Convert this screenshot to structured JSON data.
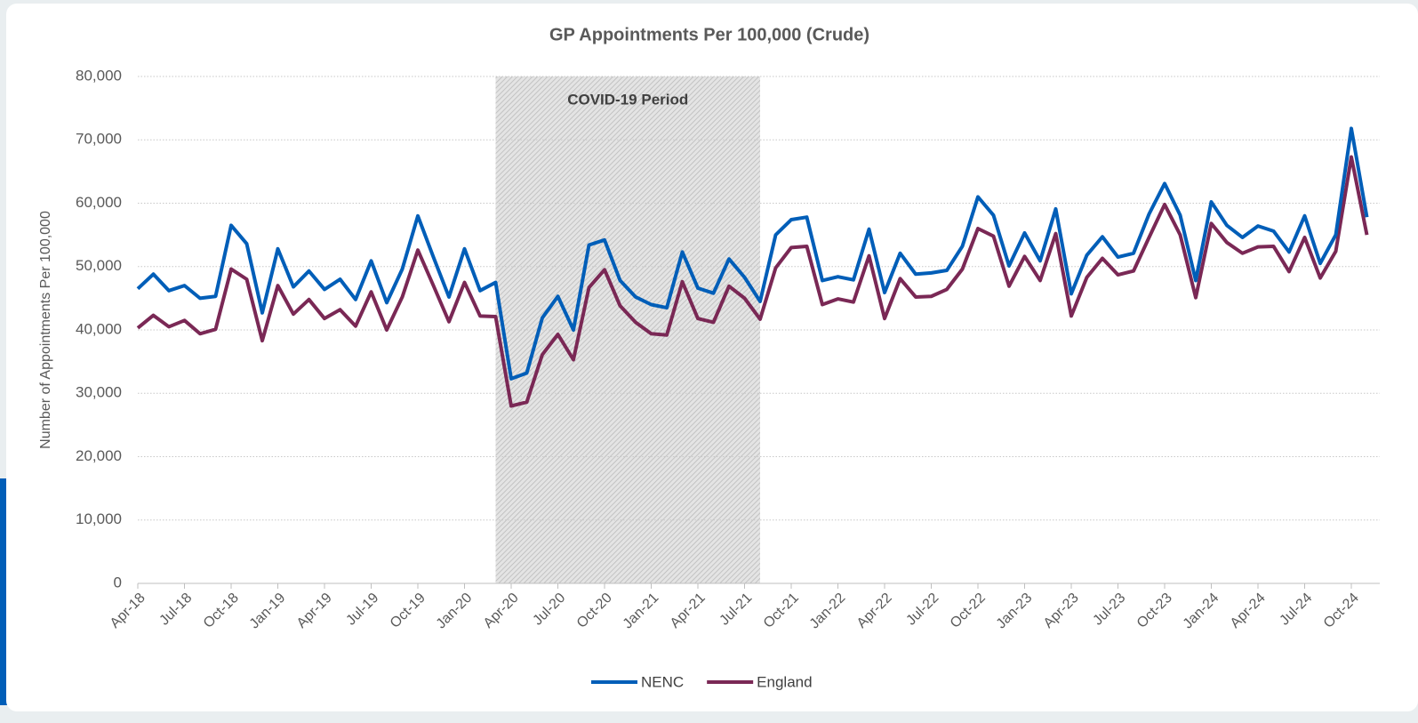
{
  "chart_data": {
    "type": "line",
    "title": "GP Appointments Per 100,000 (Crude)",
    "y_label": "Number of Appointments Per 100,000",
    "categories": [
      "Apr-18",
      null,
      null,
      "Jul-18",
      null,
      null,
      "Oct-18",
      null,
      null,
      "Jan-19",
      null,
      null,
      "Apr-19",
      null,
      null,
      "Jul-19",
      null,
      null,
      "Oct-19",
      null,
      null,
      "Jan-20",
      null,
      null,
      "Apr-20",
      null,
      null,
      "Jul-20",
      null,
      null,
      "Oct-20",
      null,
      null,
      "Jan-21",
      null,
      null,
      "Apr-21",
      null,
      null,
      "Jul-21",
      null,
      null,
      "Oct-21",
      null,
      null,
      "Jan-22",
      null,
      null,
      "Apr-22",
      null,
      null,
      "Jul-22",
      null,
      null,
      "Oct-22",
      null,
      null,
      "Jan-23",
      null,
      null,
      "Apr-23",
      null,
      null,
      "Jul-23",
      null,
      null,
      "Oct-23",
      null,
      null,
      "Jan-24",
      null,
      null,
      "Apr-24",
      null,
      null,
      "Jul-24",
      null,
      null,
      "Oct-24",
      null
    ],
    "series": [
      {
        "name": "NENC",
        "color": "#005eb8",
        "values": [
          46500,
          48800,
          46200,
          47000,
          45000,
          45300,
          56500,
          53600,
          42700,
          52800,
          46800,
          49300,
          46400,
          48000,
          44800,
          50900,
          44300,
          49600,
          58000,
          51500,
          45200,
          52800,
          46200,
          47500,
          32300,
          33200,
          41900,
          45300,
          40000,
          53400,
          54200,
          47800,
          45200,
          44000,
          43500,
          52300,
          46600,
          45800,
          51200,
          48300,
          44500,
          55000,
          57400,
          57800,
          47800,
          48400,
          47900,
          55900,
          45900,
          52100,
          48800,
          49000,
          49400,
          53200,
          61000,
          58100,
          50100,
          55300,
          50900,
          59100,
          45700,
          51800,
          54700,
          51500,
          52100,
          58300,
          63100,
          58100,
          47800,
          60200,
          56500,
          54600,
          56400,
          55600,
          52300,
          58000,
          50500,
          55000,
          71800,
          57800
        ]
      },
      {
        "name": "England",
        "color": "#7a2855",
        "values": [
          40300,
          42300,
          40500,
          41500,
          39400,
          40100,
          49600,
          48000,
          38300,
          47000,
          42500,
          44800,
          41800,
          43200,
          40600,
          46000,
          40000,
          45200,
          52600,
          47000,
          41300,
          47500,
          42200,
          42100,
          28000,
          28600,
          36100,
          39300,
          35300,
          46700,
          49500,
          43800,
          41200,
          39400,
          39200,
          47600,
          41800,
          41200,
          46900,
          45000,
          41700,
          49800,
          53000,
          53200,
          44000,
          44900,
          44400,
          51700,
          41800,
          48100,
          45200,
          45300,
          46400,
          49600,
          56000,
          54800,
          46900,
          51600,
          47800,
          55200,
          42200,
          48300,
          51300,
          48700,
          49300,
          54600,
          59800,
          55000,
          45100,
          56800,
          53800,
          52100,
          53100,
          53200,
          49200,
          54600,
          48200,
          52400,
          67300,
          55000
        ]
      }
    ],
    "shaded_region": {
      "text": "COVID-19 Period",
      "start": 23,
      "end": 40
    },
    "ylim": [
      0,
      80000
    ],
    "yticks": [
      0,
      {
        "value": 10000,
        "label": "10,000"
      },
      {
        "value": 20000,
        "label": "20,000"
      },
      {
        "value": 30000,
        "label": "30,000"
      },
      {
        "value": 40000,
        "label": "40,000"
      },
      {
        "value": 50000,
        "label": "50,000"
      },
      {
        "value": 60000,
        "label": "60,000"
      },
      {
        "value": 70000,
        "label": "70,000"
      },
      {
        "value": 80000,
        "label": "80,000"
      }
    ],
    "grid": true,
    "legend": "bottom"
  }
}
